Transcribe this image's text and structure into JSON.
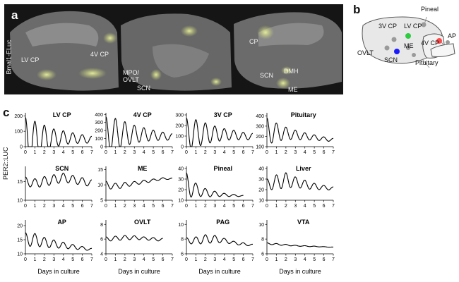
{
  "panel_a": {
    "letter": "a",
    "vertical_label": "Bmal1-ELuc",
    "labels": [
      "LV CP",
      "4V CP",
      "MPO/\nOVLT",
      "SCN",
      "CP",
      "SCN",
      "DMH",
      "ME"
    ]
  },
  "panel_b": {
    "letter": "b",
    "labels": [
      "Pineal",
      "3V CP",
      "LV CP",
      "ME",
      "AP",
      "4V CP",
      "OVLT",
      "SCN",
      "Pituitary"
    ],
    "dot_colors": {
      "lv_cp": "#2ecc40",
      "scn": "#1a1aff",
      "4v_cp": "#ff4a4a",
      "other": "#9a9a9a"
    }
  },
  "panel_c": {
    "letter": "c",
    "ylabel": "PER2::LUC",
    "xlabel": "Days in culture"
  },
  "chart_data": [
    {
      "type": "line",
      "title": "LV CP",
      "x_ticks": [
        0,
        1,
        2,
        3,
        4,
        5,
        6,
        7
      ],
      "y_ticks": [
        0,
        100,
        200
      ],
      "ylim": [
        0,
        220
      ],
      "xmax": 7.0,
      "mean": [
        40,
        45,
        50,
        55,
        58,
        55,
        50,
        45
      ],
      "amp": [
        150,
        120,
        90,
        60,
        45,
        35,
        28,
        22
      ],
      "period": 1.0
    },
    {
      "type": "line",
      "title": "4V CP",
      "x_ticks": [
        0,
        1,
        2,
        3,
        4,
        5,
        6,
        7
      ],
      "y_ticks": [
        0,
        100,
        200,
        300,
        400
      ],
      "ylim": [
        0,
        420
      ],
      "xmax": 7.0,
      "mean": [
        150,
        160,
        160,
        155,
        150,
        140,
        130,
        120
      ],
      "amp": [
        220,
        190,
        150,
        110,
        85,
        65,
        50,
        40
      ],
      "period": 1.0
    },
    {
      "type": "line",
      "title": "3V CP",
      "x_ticks": [
        0,
        1,
        2,
        3,
        4,
        5,
        6,
        7
      ],
      "y_ticks": [
        0,
        100,
        200,
        300
      ],
      "ylim": [
        0,
        320
      ],
      "xmax": 7.0,
      "mean": [
        120,
        125,
        125,
        120,
        115,
        110,
        100,
        95
      ],
      "amp": [
        150,
        130,
        100,
        75,
        55,
        45,
        35,
        30
      ],
      "period": 1.0
    },
    {
      "type": "line",
      "title": "Pituitary",
      "x_ticks": [
        0,
        1,
        2,
        3,
        4,
        5,
        6,
        7
      ],
      "y_ticks": [
        100,
        200,
        300,
        400
      ],
      "ylim": [
        100,
        430
      ],
      "xmax": 7.0,
      "mean": [
        250,
        240,
        230,
        215,
        200,
        190,
        175,
        165
      ],
      "amp": [
        130,
        90,
        60,
        45,
        35,
        25,
        20,
        15
      ],
      "period": 1.0
    },
    {
      "type": "line",
      "title": "SCN",
      "x_ticks": [
        0,
        1,
        2,
        3,
        4,
        5,
        6,
        7
      ],
      "y_ticks": [
        10,
        15
      ],
      "ylim": [
        10,
        19
      ],
      "xmax": 7.0,
      "mean": [
        15,
        14.5,
        15,
        15.5,
        16,
        15.5,
        15,
        14.5
      ],
      "amp": [
        1.2,
        1.2,
        1.3,
        1.3,
        1.2,
        1.1,
        1.0,
        0.9
      ],
      "period": 1.0
    },
    {
      "type": "line",
      "title": "ME",
      "x_ticks": [
        0,
        1,
        2,
        3,
        4,
        5,
        6,
        7
      ],
      "y_ticks": [
        5,
        10,
        15
      ],
      "ylim": [
        5,
        16
      ],
      "xmax": 7.0,
      "mean": [
        10,
        9.5,
        10,
        10.5,
        11,
        11.5,
        12,
        12
      ],
      "amp": [
        1.2,
        1.0,
        0.8,
        0.6,
        0.5,
        0.4,
        0.3,
        0.2
      ],
      "period": 1.0
    },
    {
      "type": "line",
      "title": "Pineal",
      "x_ticks": [
        0,
        1,
        2,
        3,
        4,
        5,
        6,
        7
      ],
      "y_ticks": [
        10,
        20,
        30,
        40
      ],
      "ylim": [
        10,
        42
      ],
      "xmax": 6.0,
      "mean": [
        24,
        20,
        17,
        16,
        15,
        14.5,
        14
      ],
      "amp": [
        12,
        6,
        4,
        2.5,
        1.5,
        1,
        0.5
      ],
      "period": 1.0
    },
    {
      "type": "line",
      "title": "Liver",
      "x_ticks": [
        0,
        1,
        2,
        3,
        4,
        5,
        6,
        7
      ],
      "y_ticks": [
        10,
        20,
        30,
        40
      ],
      "ylim": [
        10,
        42
      ],
      "xmax": 7.0,
      "mean": [
        25,
        27,
        29,
        27,
        25,
        23,
        22,
        21
      ],
      "amp": [
        5,
        7,
        7,
        5,
        4,
        3,
        2,
        1.5
      ],
      "period": 1.0
    },
    {
      "type": "line",
      "title": "AP",
      "x_ticks": [
        0,
        1,
        2,
        3,
        4,
        5,
        6,
        7
      ],
      "y_ticks": [
        10,
        15,
        20
      ],
      "ylim": [
        10,
        22
      ],
      "xmax": 7.0,
      "mean": [
        15,
        15,
        14,
        13.5,
        13,
        12.5,
        12,
        11.5
      ],
      "amp": [
        2.5,
        2.2,
        1.8,
        1.4,
        1.1,
        0.8,
        0.6,
        0.4
      ],
      "period": 1.0
    },
    {
      "type": "line",
      "title": "OVLT",
      "x_ticks": [
        0,
        1,
        2,
        3,
        4,
        5,
        6,
        7
      ],
      "y_ticks": [
        4,
        6,
        8
      ],
      "ylim": [
        4,
        8.6
      ],
      "xmax": 6.0,
      "mean": [
        6,
        6.1,
        6.2,
        6.2,
        6.1,
        6,
        5.9
      ],
      "amp": [
        0.3,
        0.3,
        0.3,
        0.25,
        0.2,
        0.2,
        0.2
      ],
      "period": 1.0
    },
    {
      "type": "line",
      "title": "PAG",
      "x_ticks": [
        0,
        1,
        2,
        3,
        4,
        5,
        6,
        7
      ],
      "y_ticks": [
        6,
        8,
        10
      ],
      "ylim": [
        6,
        10.6
      ],
      "xmax": 7.0,
      "mean": [
        7.8,
        7.8,
        8,
        8,
        7.8,
        7.5,
        7.3,
        7.2
      ],
      "amp": [
        0.4,
        0.5,
        0.6,
        0.5,
        0.3,
        0.2,
        0.2,
        0.1
      ],
      "period": 1.0
    },
    {
      "type": "line",
      "title": "VTA",
      "x_ticks": [
        0,
        1,
        2,
        3,
        4,
        5,
        6,
        7
      ],
      "y_ticks": [
        6,
        8,
        10
      ],
      "ylim": [
        6,
        10.6
      ],
      "xmax": 7.0,
      "mean": [
        7.4,
        7.3,
        7.2,
        7.1,
        7.05,
        7.0,
        6.95,
        6.9
      ],
      "amp": [
        0.1,
        0.1,
        0.08,
        0.06,
        0.05,
        0.04,
        0.03,
        0.02
      ],
      "period": 1.0
    }
  ]
}
